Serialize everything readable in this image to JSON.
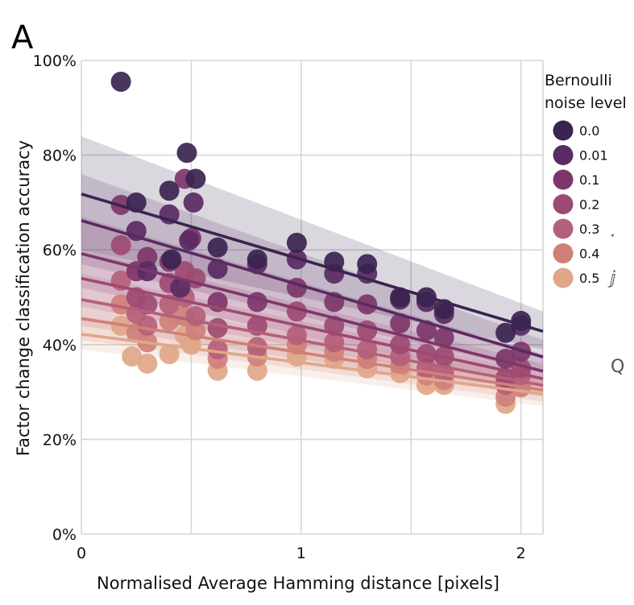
{
  "panel_label": "A",
  "stray_glyphs": [
    "·",
    "ⅉ",
    "Q"
  ],
  "chart_data": {
    "type": "scatter",
    "title": "",
    "xlabel": "Normalised Average Hamming distance [pixels]",
    "ylabel": "Factor change classification accuracy",
    "xlim": [
      0,
      2.1
    ],
    "ylim": [
      0,
      100
    ],
    "x_ticks": [
      0,
      1,
      2
    ],
    "x_tick_labels": [
      "0",
      "1",
      "2"
    ],
    "y_ticks": [
      0,
      20,
      40,
      60,
      80,
      100
    ],
    "y_tick_labels": [
      "0%",
      "20%",
      "40%",
      "60%",
      "80%",
      "100%"
    ],
    "grid": true,
    "legend": {
      "title_lines": [
        "Bernoulli",
        "noise level"
      ],
      "placement": "right"
    },
    "series": [
      {
        "name": "0.0",
        "color": "#3a2450",
        "x": [
          0.18,
          0.25,
          0.4,
          0.41,
          0.48,
          0.52,
          0.62,
          0.8,
          0.98,
          1.15,
          1.3,
          1.45,
          1.57,
          1.65,
          1.93,
          2.0
        ],
        "y": [
          95.5,
          70,
          72.5,
          58,
          80.5,
          75,
          60.5,
          58,
          61.5,
          57.5,
          57,
          50,
          50,
          47.5,
          42.5,
          45
        ],
        "fit": [
          71.8,
          42.8
        ],
        "band": [
          [
            84,
            60
          ],
          [
            47,
            39
          ]
        ]
      },
      {
        "name": "0.01",
        "color": "#5a2a62",
        "x": [
          0.25,
          0.3,
          0.4,
          0.45,
          0.49,
          0.51,
          0.62,
          0.8,
          0.98,
          1.15,
          1.3,
          1.45,
          1.57,
          1.65,
          2.0
        ],
        "y": [
          64,
          55.5,
          67.5,
          52,
          62,
          70,
          56,
          57,
          58,
          55,
          55,
          49.5,
          49,
          46.5,
          44
        ],
        "fit": [
          66.2,
          37.4
        ],
        "band": [
          [
            76,
            57
          ],
          [
            41,
            34
          ]
        ]
      },
      {
        "name": "0.1",
        "color": "#7d3669",
        "x": [
          0.18,
          0.25,
          0.3,
          0.4,
          0.47,
          0.5,
          0.62,
          0.8,
          0.98,
          1.15,
          1.3,
          1.45,
          1.57,
          1.65,
          1.93,
          2.0
        ],
        "y": [
          69.5,
          55.5,
          58.5,
          57.5,
          75,
          62.5,
          49,
          49,
          52,
          49,
          48.5,
          44.5,
          43,
          41.5,
          37,
          38.5
        ],
        "fit": [
          59.2,
          34.4
        ],
        "band": [
          [
            67,
            52
          ],
          [
            38,
            31
          ]
        ]
      },
      {
        "name": "0.2",
        "color": "#9d4a72",
        "x": [
          0.18,
          0.25,
          0.3,
          0.4,
          0.47,
          0.52,
          0.62,
          0.8,
          0.98,
          1.15,
          1.3,
          1.45,
          1.57,
          1.65,
          1.93,
          2.0
        ],
        "y": [
          61,
          50,
          48.5,
          53,
          55.5,
          54,
          43.5,
          44,
          47,
          44,
          43,
          40,
          38,
          37.5,
          33,
          35
        ],
        "fit": [
          54.0,
          32.8
        ],
        "band": [
          [
            60,
            48
          ],
          [
            36,
            30
          ]
        ]
      },
      {
        "name": "0.3",
        "color": "#b5607a",
        "x": [
          0.18,
          0.25,
          0.3,
          0.4,
          0.47,
          0.52,
          0.62,
          0.8,
          0.98,
          1.15,
          1.3,
          1.45,
          1.57,
          1.65,
          1.93,
          2.0
        ],
        "y": [
          53.5,
          46.5,
          44,
          48.5,
          50,
          46,
          39,
          39.5,
          42,
          40.5,
          39,
          37.5,
          35,
          34,
          31.5,
          33.5
        ],
        "fit": [
          49.5,
          31.4
        ],
        "band": [
          [
            55,
            44
          ],
          [
            34,
            29
          ]
        ]
      },
      {
        "name": "0.4",
        "color": "#cf8079",
        "x": [
          0.18,
          0.25,
          0.3,
          0.4,
          0.47,
          0.52,
          0.62,
          0.8,
          0.98,
          1.15,
          1.3,
          1.45,
          1.57,
          1.65,
          1.93,
          2.0
        ],
        "y": [
          48.5,
          42.5,
          40.5,
          45,
          46,
          43,
          37,
          37.5,
          40,
          38.5,
          37,
          35.5,
          33.5,
          32.5,
          29,
          31
        ],
        "fit": [
          45.5,
          30.4
        ],
        "band": [
          [
            50,
            41
          ],
          [
            33,
            28
          ]
        ]
      },
      {
        "name": "0.5",
        "color": "#e0a688",
        "x": [
          0.18,
          0.23,
          0.3,
          0.4,
          0.47,
          0.5,
          0.62,
          0.8,
          0.98,
          1.15,
          1.3,
          1.45,
          1.57,
          1.65,
          1.93,
          2.0
        ],
        "y": [
          44,
          37.5,
          36,
          38,
          42,
          40,
          34.5,
          34.5,
          37.5,
          37,
          35,
          34,
          31.5,
          31.5,
          27.5,
          31.5
        ],
        "fit": [
          42.2,
          29.6
        ],
        "band": [
          [
            46,
            39
          ],
          [
            32,
            27
          ]
        ]
      }
    ]
  }
}
